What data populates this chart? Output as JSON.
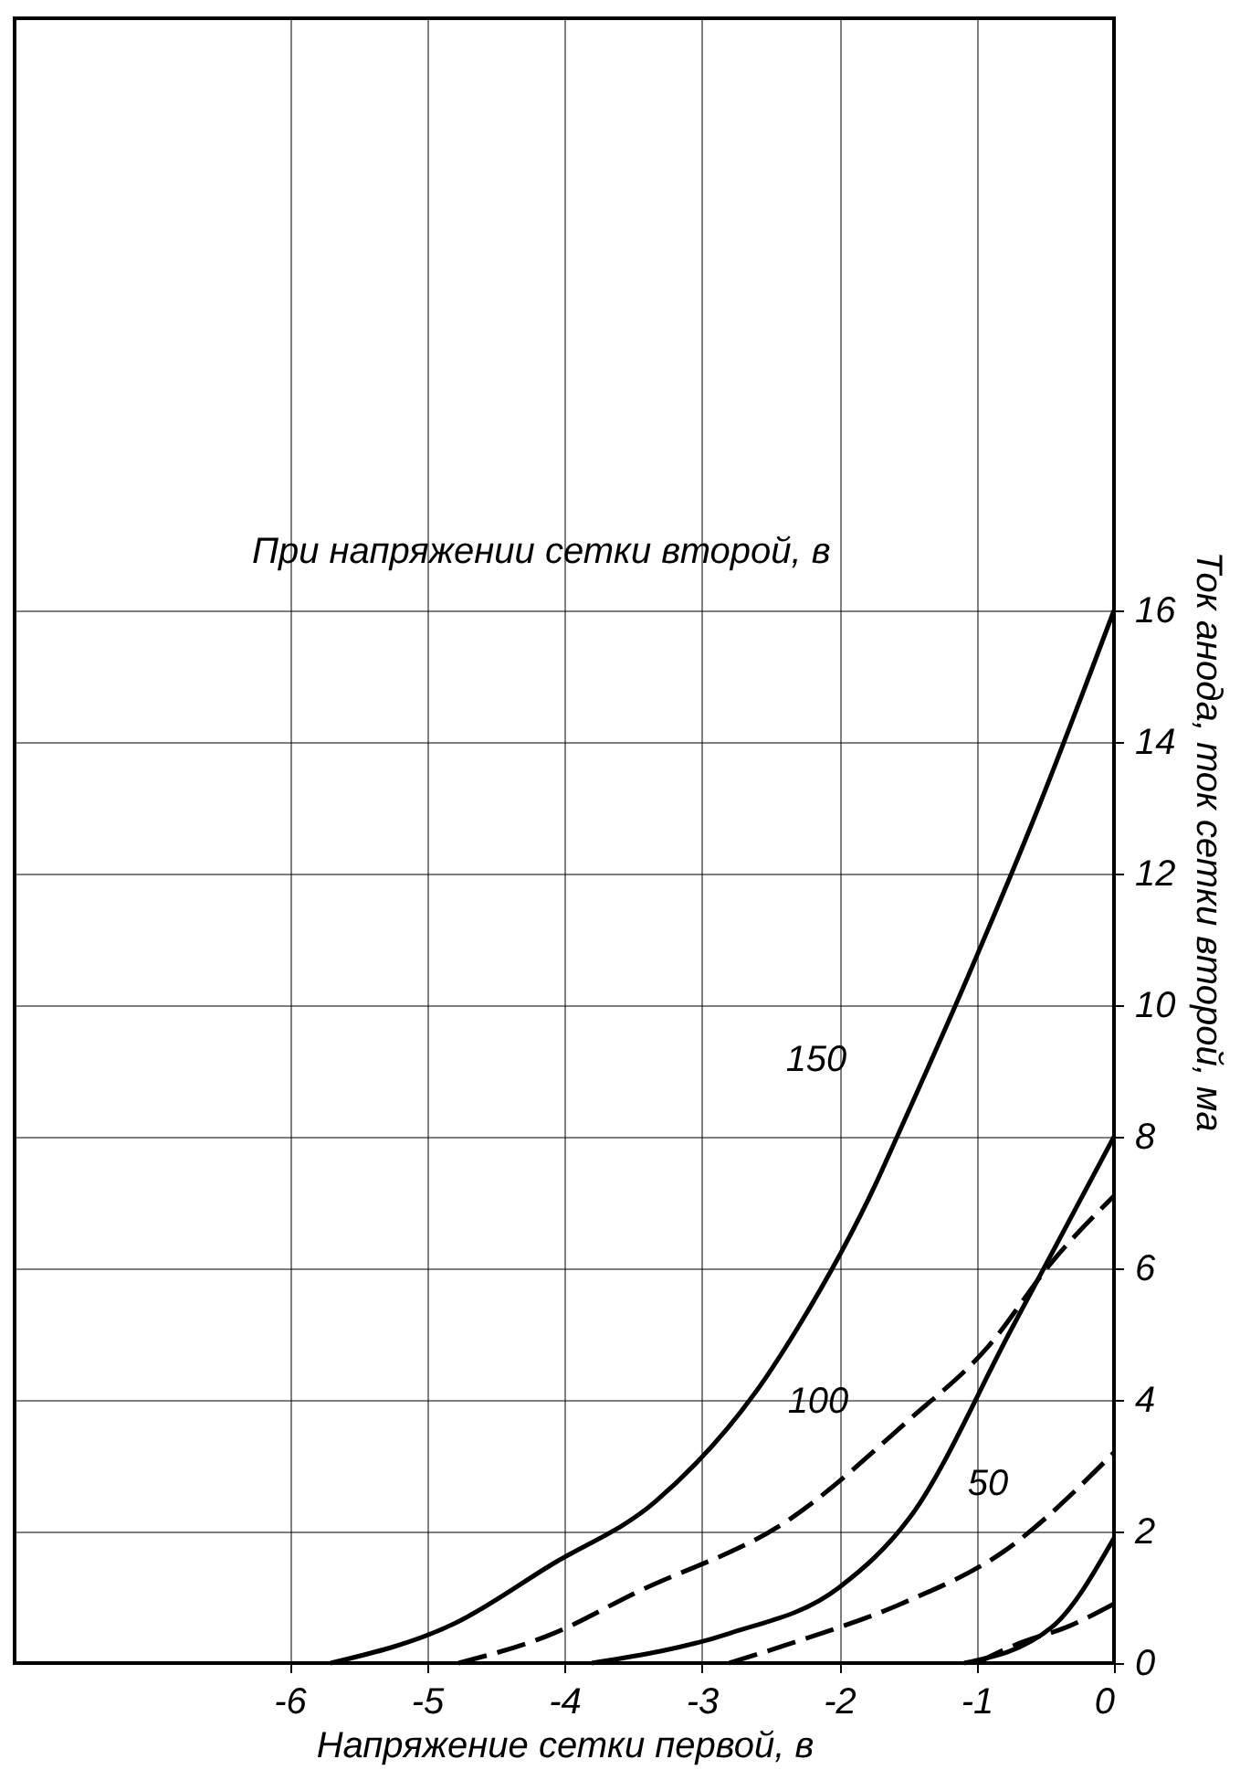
{
  "chart_data": {
    "type": "line",
    "xlabel": "Напряжение сетки первой, в",
    "ylabel": "Ток анода, ток сетки второй, ма",
    "xlim": [
      -8,
      0
    ],
    "xticks": [
      -6,
      -5,
      -4,
      -3,
      -2,
      -1,
      0
    ],
    "ylim": [
      0,
      25
    ],
    "yticks": [
      0,
      2,
      4,
      6,
      8,
      10,
      12,
      14,
      16
    ],
    "grid": true,
    "annotations": [
      "При напряжении сетки второй, в",
      "150",
      "100",
      "50"
    ],
    "series": [
      {
        "color": "#000000",
        "line_style": "solid",
        "x": [
          -5.7,
          -4.8,
          -4.09,
          -3.34,
          -2.53,
          -2.3,
          -1.73,
          -1.6,
          -1.07,
          -0.57,
          0
        ],
        "values": [
          0,
          0.6,
          1.5,
          2.45,
          4.35,
          5.1,
          7.3,
          7.9,
          10.4,
          12.9,
          16
        ]
      },
      {
        "color": "#000000",
        "line_style": "dashed",
        "x": [
          -4.77,
          -4.08,
          -3.5,
          -2.35,
          -1.49,
          -0.92,
          -0.45,
          0
        ],
        "values": [
          0,
          0.45,
          1.05,
          2.2,
          3.7,
          4.8,
          6.1,
          7.1
        ]
      },
      {
        "color": "#000000",
        "line_style": "solid",
        "x": [
          -3.8,
          -2.8,
          -2.0,
          -1.49,
          -0.74,
          0
        ],
        "values": [
          0,
          0.45,
          1.15,
          2.2,
          5.1,
          8
        ]
      },
      {
        "color": "#000000",
        "line_style": "dashed",
        "x": [
          -2.8,
          -2.35,
          -1.55,
          -0.8,
          0
        ],
        "values": [
          0,
          0.3,
          0.9,
          1.7,
          3.2
        ]
      },
      {
        "color": "#000000",
        "line_style": "solid",
        "x": [
          -1.09,
          -0.45,
          0
        ],
        "values": [
          0,
          0.55,
          1.9
        ]
      },
      {
        "color": "#000000",
        "line_style": "dashed",
        "x": [
          -1.0,
          -0.69,
          -0.34,
          0
        ],
        "values": [
          0,
          0.3,
          0.55,
          0.9
        ]
      }
    ]
  }
}
